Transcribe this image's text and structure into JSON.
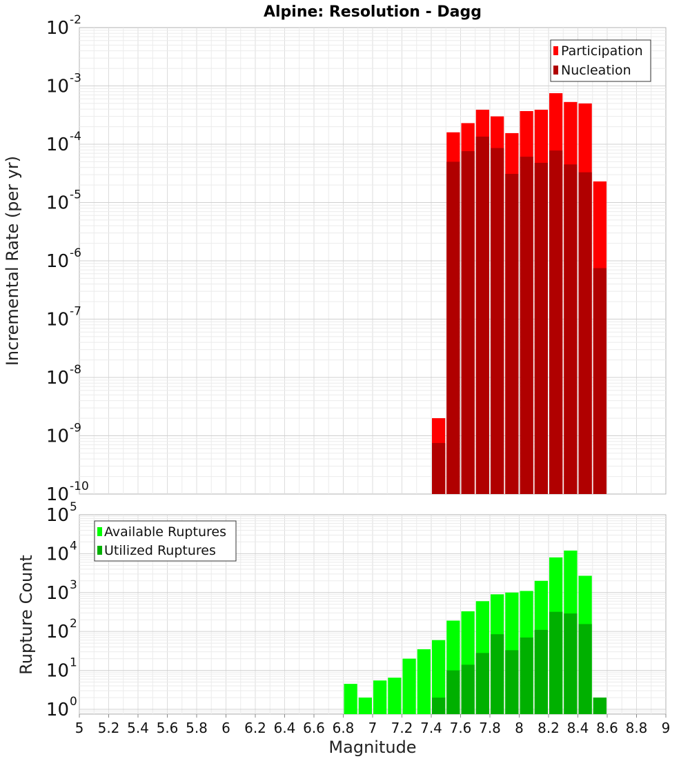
{
  "chart_data": [
    {
      "type": "bar",
      "title": "Alpine: Resolution - Dagg",
      "xlabel": "",
      "ylabel": "Incremental Rate (per yr)",
      "yscale": "log",
      "xlim": [
        5,
        9
      ],
      "ylim": [
        1e-10,
        0.01
      ],
      "bin_width": 0.1,
      "legend_position": "top-right",
      "series": [
        {
          "name": "Participation",
          "color": "#ff0000",
          "x": [
            7.45,
            7.55,
            7.65,
            7.75,
            7.85,
            7.95,
            8.05,
            8.15,
            8.25,
            8.35,
            8.45,
            8.55
          ],
          "values": [
            2e-09,
            0.00016,
            0.00023,
            0.00039,
            0.0003,
            0.000155,
            0.00037,
            0.00039,
            0.00075,
            0.00053,
            0.0005,
            2.3e-05
          ]
        },
        {
          "name": "Nucleation",
          "color": "#b00000",
          "x": [
            7.45,
            7.55,
            7.65,
            7.75,
            7.85,
            7.95,
            8.05,
            8.15,
            8.25,
            8.35,
            8.45,
            8.55
          ],
          "values": [
            7.5e-10,
            5e-05,
            7.6e-05,
            0.000135,
            8.6e-05,
            3.1e-05,
            6.1e-05,
            4.8e-05,
            7.8e-05,
            4.5e-05,
            3.3e-05,
            7.5e-07
          ]
        }
      ]
    },
    {
      "type": "bar",
      "title": "",
      "xlabel": "Magnitude",
      "ylabel": "Rupture Count",
      "yscale": "log",
      "xlim": [
        5,
        9
      ],
      "ylim": [
        0.75,
        100000.0
      ],
      "bin_width": 0.1,
      "legend_position": "top-left",
      "xticks": [
        "5",
        "5.2",
        "5.4",
        "5.6",
        "5.8",
        "6",
        "6.2",
        "6.4",
        "6.6",
        "6.8",
        "7",
        "7.2",
        "7.4",
        "7.6",
        "7.8",
        "8",
        "8.2",
        "8.4",
        "8.6",
        "8.8",
        "9"
      ],
      "series": [
        {
          "name": "Available Ruptures",
          "color": "#00ff00",
          "x": [
            6.85,
            6.95,
            7.05,
            7.15,
            7.25,
            7.35,
            7.45,
            7.55,
            7.65,
            7.75,
            7.85,
            7.95,
            8.05,
            8.15,
            8.25,
            8.35,
            8.45,
            8.55
          ],
          "values": [
            4.5,
            2,
            5.5,
            6.5,
            20,
            35,
            60,
            190,
            330,
            600,
            900,
            1000,
            1100,
            2000,
            8000,
            12000,
            2700,
            2
          ]
        },
        {
          "name": "Utilized Ruptures",
          "color": "#00b000",
          "x": [
            7.45,
            7.55,
            7.65,
            7.75,
            7.85,
            7.95,
            8.05,
            8.15,
            8.25,
            8.35,
            8.45,
            8.55
          ],
          "values": [
            2,
            10,
            14,
            28,
            85,
            33,
            70,
            110,
            320,
            290,
            155,
            2
          ]
        }
      ]
    }
  ]
}
